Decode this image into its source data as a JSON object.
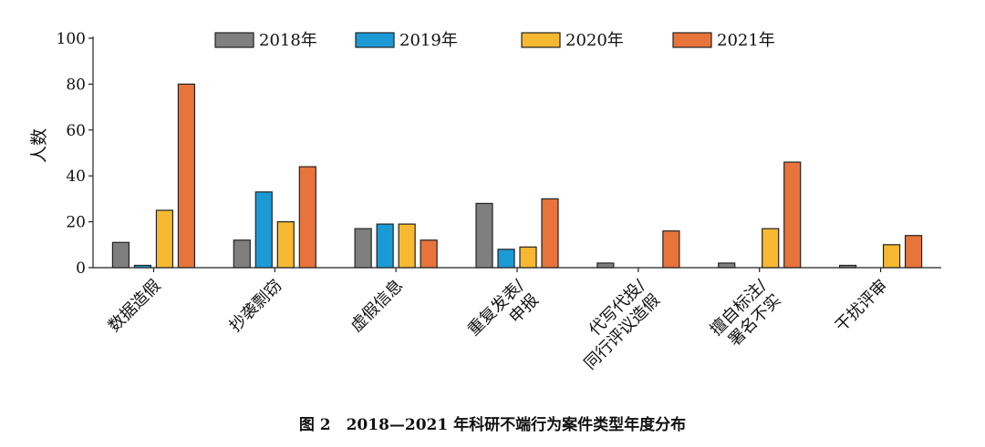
{
  "chart_data": {
    "type": "bar",
    "categories": [
      "数据造假",
      "抄袭剽窃",
      "虚假信息",
      "重复发表/\n申报",
      "代写代投/\n同行评议造假",
      "擅自标注/\n署名不实",
      "干扰评审"
    ],
    "series": [
      {
        "name": "2018年",
        "color": "#7f7f7f",
        "values": [
          11,
          12,
          17,
          28,
          2,
          2,
          1
        ]
      },
      {
        "name": "2019年",
        "color": "#1c9ad6",
        "values": [
          1,
          33,
          19,
          8,
          0,
          0,
          0
        ]
      },
      {
        "name": "2020年",
        "color": "#f6b931",
        "values": [
          25,
          20,
          19,
          9,
          0,
          17,
          10
        ]
      },
      {
        "name": "2021年",
        "color": "#e8743b",
        "values": [
          80,
          44,
          12,
          30,
          16,
          46,
          14
        ]
      }
    ],
    "ylabel": "人数",
    "xlabel": "",
    "ylim": [
      0,
      100
    ],
    "yticks": [
      0,
      20,
      40,
      60,
      80,
      100
    ],
    "legend_position": "top",
    "grid": false
  },
  "caption": "图 2　2018—2021 年科研不端行为案件类型年度分布"
}
